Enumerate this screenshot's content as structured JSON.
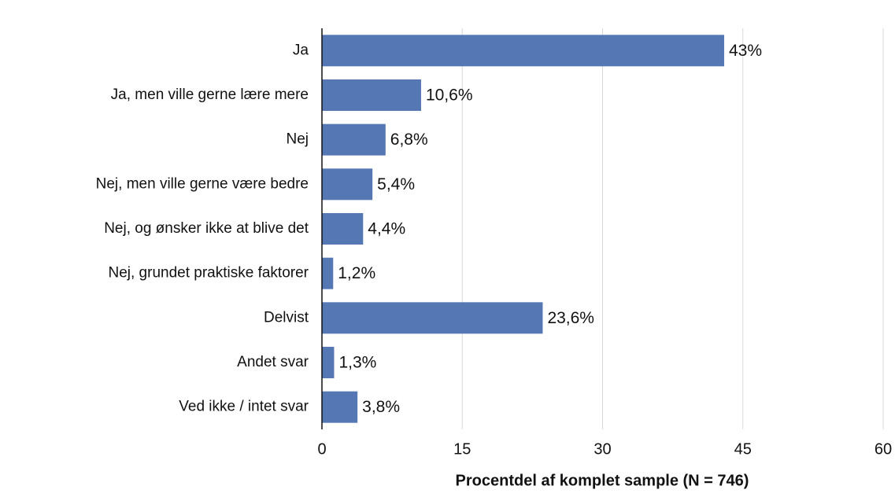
{
  "chart_data": {
    "type": "bar",
    "orientation": "horizontal",
    "xlabel": "Procentdel af komplet sample (N = 746)",
    "categories": [
      "Ja",
      "Ja, men ville gerne lære mere",
      "Nej",
      "Nej, men ville gerne være bedre",
      "Nej, og ønsker ikke at blive det",
      "Nej, grundet praktiske faktorer",
      "Delvist",
      "Andet svar",
      "Ved ikke / intet svar"
    ],
    "values": [
      43,
      10.6,
      6.8,
      5.4,
      4.4,
      1.2,
      23.6,
      1.3,
      3.8
    ],
    "value_labels": [
      "43%",
      "10,6%",
      "6,8%",
      "5,4%",
      "4,4%",
      "1,2%",
      "23,6%",
      "1,3%",
      "3,8%"
    ],
    "color": "#5578b5",
    "xlim": [
      0,
      60
    ],
    "xticks": [
      0,
      15,
      30,
      45,
      60
    ],
    "grid": true
  }
}
